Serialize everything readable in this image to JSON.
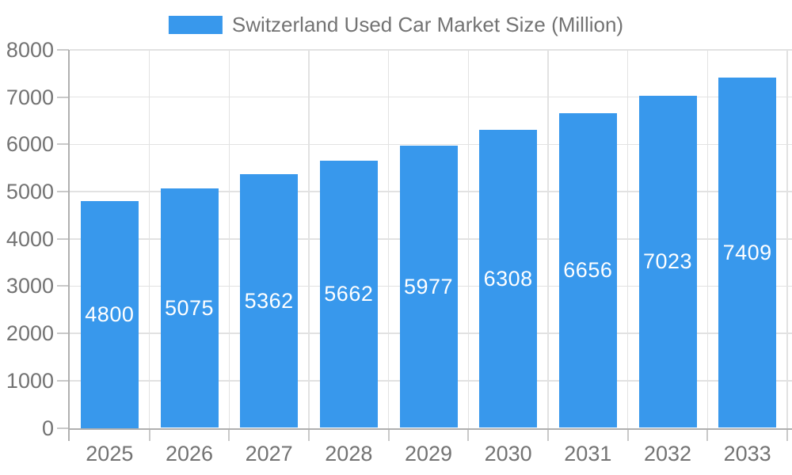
{
  "chart_data": {
    "type": "bar",
    "title": "Switzerland Used Car Market Size (Million)",
    "categories": [
      "2025",
      "2026",
      "2027",
      "2028",
      "2029",
      "2030",
      "2031",
      "2032",
      "2033"
    ],
    "values": [
      4800,
      5075,
      5362,
      5662,
      5977,
      6308,
      6656,
      7023,
      7409
    ],
    "xlabel": "",
    "ylabel": "",
    "ylim": [
      0,
      8000
    ],
    "ytick_step": 1000,
    "ytick_labels": [
      "0",
      "1000",
      "2000",
      "3000",
      "4000",
      "5000",
      "6000",
      "7000",
      "8000"
    ],
    "grid": true,
    "legend_position": "top-center",
    "bar_labels_inside": true,
    "colors": {
      "bar": "#3898ec",
      "bar_label": "#ffffff",
      "axis_text": "#737373",
      "grid_line": "#e2e2e2",
      "axis_line": "#b0b0b0",
      "tick_line": "#c9c9c9"
    }
  }
}
